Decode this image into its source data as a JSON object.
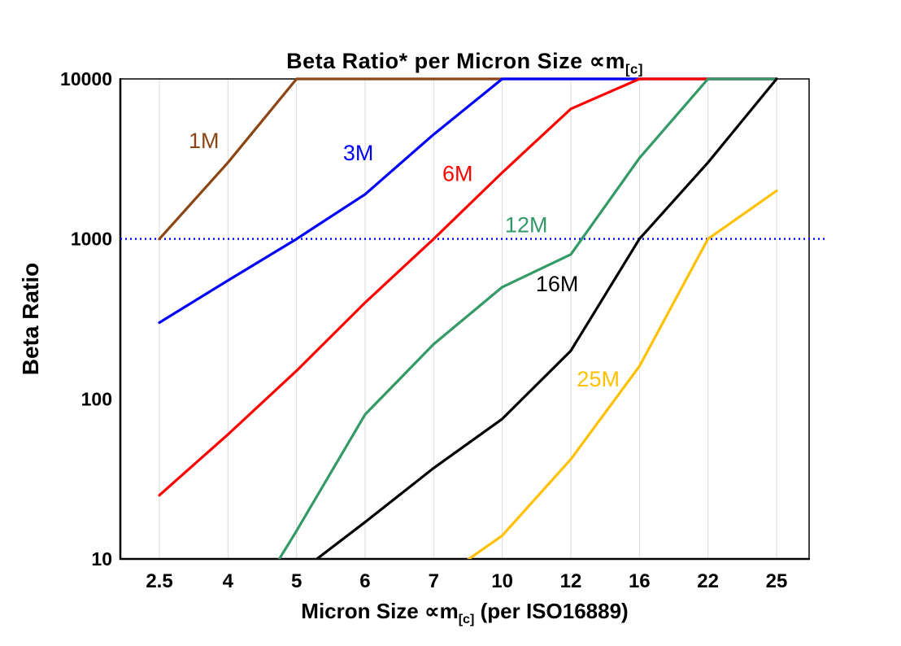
{
  "page": {
    "background_color": "#FFFFFF"
  },
  "chart_data": {
    "type": "line",
    "title": {
      "text": "Beta Ratio* per Micron Size ∝m",
      "subscript": "[c]"
    },
    "xlabel": {
      "pre": "Micron Size ∝m",
      "subscript": "[c]",
      "post": " (per ISO16889)"
    },
    "ylabel": "Beta Ratio",
    "x_categories": [
      "2.5",
      "4",
      "5",
      "6",
      "7",
      "10",
      "12",
      "16",
      "22",
      "25"
    ],
    "y_scale": "log",
    "ylim": [
      10,
      10000
    ],
    "y_ticks": [
      "10",
      "100",
      "1000",
      "10000"
    ],
    "grid": "vertical-only",
    "gridline_color": "#D9D9D9",
    "axis_color": "#000000",
    "reference_line": {
      "value": 1000,
      "color": "#0000FF",
      "style": "dotted"
    },
    "series": [
      {
        "name": "1M",
        "color": "#8B4513",
        "values": [
          1000,
          3000,
          10000,
          10000,
          10000,
          10000,
          10000,
          10000,
          10000,
          10000
        ],
        "label_pos": {
          "x_index": 0.65,
          "y": 3700
        }
      },
      {
        "name": "3M",
        "color": "#0000FF",
        "values": [
          300,
          550,
          1000,
          1900,
          4500,
          10000,
          10000,
          10000,
          10000,
          10000
        ],
        "label_pos": {
          "x_index": 2.9,
          "y": 3100
        }
      },
      {
        "name": "6M",
        "color": "#FF0000",
        "values": [
          25,
          60,
          150,
          400,
          1000,
          2600,
          6500,
          10000,
          10000,
          10000
        ],
        "label_pos": {
          "x_index": 4.35,
          "y": 2300
        }
      },
      {
        "name": "12M",
        "color": "#339966",
        "values": [
          null,
          3,
          15,
          80,
          220,
          500,
          800,
          3200,
          10000,
          10000
        ],
        "label_pos": {
          "x_index": 5.35,
          "y": 1100
        }
      },
      {
        "name": "16M",
        "color": "#000000",
        "values": [
          null,
          null,
          8,
          17,
          37,
          75,
          200,
          1000,
          3000,
          10000
        ],
        "label_pos": {
          "x_index": 5.8,
          "y": 470
        }
      },
      {
        "name": "25M",
        "color": "#FFC000",
        "values": [
          null,
          null,
          null,
          null,
          7,
          14,
          42,
          160,
          1000,
          2000
        ],
        "label_pos": {
          "x_index": 6.4,
          "y": 120
        }
      }
    ]
  }
}
